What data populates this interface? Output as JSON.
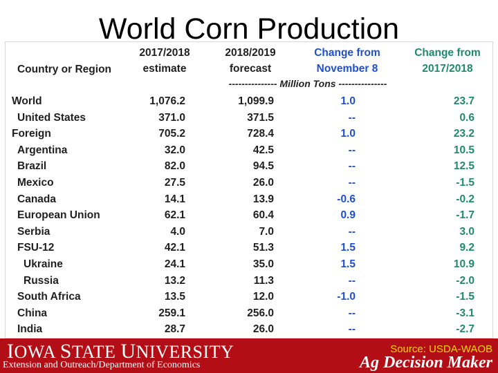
{
  "title": "World Corn Production",
  "headers": {
    "col0": "Country or Region",
    "col1_line1": "2017/2018",
    "col1_line2": "estimate",
    "col2_line1": "2018/2019",
    "col2_line2": "forecast",
    "col3_line1": "Change from",
    "col3_line2": "November 8",
    "col4_line1": "Change from",
    "col4_line2": "2017/2018"
  },
  "unit_label": "--------------- Million Tons ---------------",
  "rows": [
    {
      "name": "World",
      "indent": 0,
      "v1": "1,076.2",
      "v2": "1,099.9",
      "v3": "1.0",
      "v4": "23.7"
    },
    {
      "name": "United States",
      "indent": 1,
      "v1": "371.0",
      "v2": "371.5",
      "v3": "--",
      "v4": "0.6"
    },
    {
      "name": "Foreign",
      "indent": 0,
      "v1": "705.2",
      "v2": "728.4",
      "v3": "1.0",
      "v4": "23.2"
    },
    {
      "name": "Argentina",
      "indent": 1,
      "v1": "32.0",
      "v2": "42.5",
      "v3": "--",
      "v4": "10.5"
    },
    {
      "name": "Brazil",
      "indent": 1,
      "v1": "82.0",
      "v2": "94.5",
      "v3": "--",
      "v4": "12.5"
    },
    {
      "name": "Mexico",
      "indent": 1,
      "v1": "27.5",
      "v2": "26.0",
      "v3": "--",
      "v4": "-1.5"
    },
    {
      "name": "Canada",
      "indent": 1,
      "v1": "14.1",
      "v2": "13.9",
      "v3": "-0.6",
      "v4": "-0.2"
    },
    {
      "name": "European Union",
      "indent": 1,
      "v1": "62.1",
      "v2": "60.4",
      "v3": "0.9",
      "v4": "-1.7"
    },
    {
      "name": "Serbia",
      "indent": 1,
      "v1": "4.0",
      "v2": "7.0",
      "v3": "--",
      "v4": "3.0"
    },
    {
      "name": "FSU-12",
      "indent": 1,
      "v1": "42.1",
      "v2": "51.3",
      "v3": "1.5",
      "v4": "9.2"
    },
    {
      "name": "Ukraine",
      "indent": 2,
      "v1": "24.1",
      "v2": "35.0",
      "v3": "1.5",
      "v4": "10.9"
    },
    {
      "name": "Russia",
      "indent": 2,
      "v1": "13.2",
      "v2": "11.3",
      "v3": "--",
      "v4": "-2.0"
    },
    {
      "name": "South Africa",
      "indent": 1,
      "v1": "13.5",
      "v2": "12.0",
      "v3": "-1.0",
      "v4": "-1.5"
    },
    {
      "name": "China",
      "indent": 1,
      "v1": "259.1",
      "v2": "256.0",
      "v3": "--",
      "v4": "-3.1"
    },
    {
      "name": "India",
      "indent": 1,
      "v1": "28.7",
      "v2": "26.0",
      "v3": "--",
      "v4": "-2.7"
    }
  ],
  "footer": {
    "university": "Iowa State University",
    "extension": "Extension and Outreach/Department of Economics",
    "source": "Source: USDA-WAOB",
    "brand": "Ag Decision Maker"
  },
  "colors": {
    "footer_bg": "#b30e15",
    "change_nov": "#1d4fcf",
    "change_year": "#1f8a6c",
    "source_text": "#ffd200"
  }
}
